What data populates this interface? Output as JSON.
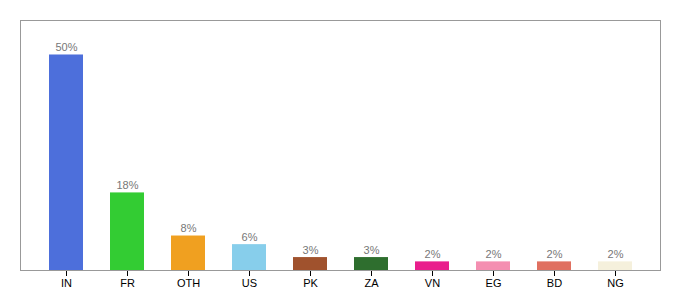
{
  "chart_data": {
    "type": "bar",
    "categories": [
      "IN",
      "FR",
      "OTH",
      "US",
      "PK",
      "ZA",
      "VN",
      "EG",
      "BD",
      "NG"
    ],
    "values": [
      50,
      18,
      8,
      6,
      3,
      3,
      2,
      2,
      2,
      2
    ],
    "value_labels": [
      "50%",
      "18%",
      "8%",
      "6%",
      "3%",
      "3%",
      "2%",
      "2%",
      "2%",
      "2%"
    ],
    "colors": [
      "#4d6fdb",
      "#33cc33",
      "#f0a020",
      "#87ceeb",
      "#a0522d",
      "#2e6e2e",
      "#e91e8c",
      "#f48fb1",
      "#e07060",
      "#f5f0dc"
    ],
    "ylim": [
      0,
      58
    ],
    "yticks": [],
    "grid": false,
    "data_labels": true,
    "tick_labels": "x"
  }
}
